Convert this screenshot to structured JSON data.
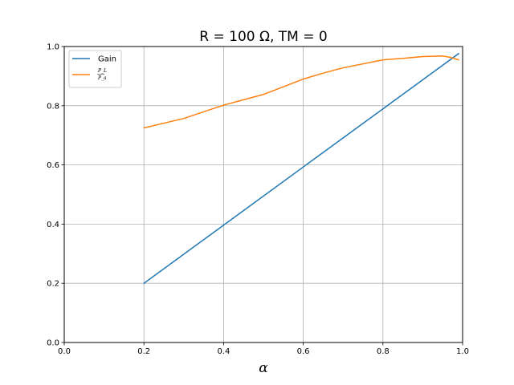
{
  "chart_data": {
    "type": "line",
    "title": "R = 100 Ω,  TM = 0",
    "xlabel": "α",
    "ylabel": "",
    "xlim": [
      0,
      1
    ],
    "ylim": [
      0,
      1
    ],
    "grid": true,
    "legend_position": "top-left",
    "x_ticks": [
      "0.0",
      "0.2",
      "0.4",
      "0.6",
      "0.8",
      "1.0"
    ],
    "y_ticks": [
      "0.0",
      "0.2",
      "0.4",
      "0.6",
      "0.8",
      "1.0"
    ],
    "series": [
      {
        "name": "Gain",
        "color": "#1f77b4",
        "x": [
          0.2,
          0.99
        ],
        "y": [
          0.2,
          0.976
        ]
      },
      {
        "name": "P_L / P_a",
        "legend_numerator": "P_L",
        "legend_denominator": "P_a",
        "color": "#ff7f0e",
        "x": [
          0.2,
          0.3,
          0.4,
          0.5,
          0.6,
          0.65,
          0.7,
          0.8,
          0.85,
          0.9,
          0.95,
          0.97,
          0.99
        ],
        "y": [
          0.725,
          0.757,
          0.802,
          0.838,
          0.89,
          0.91,
          0.928,
          0.955,
          0.96,
          0.966,
          0.968,
          0.963,
          0.955
        ]
      }
    ]
  }
}
